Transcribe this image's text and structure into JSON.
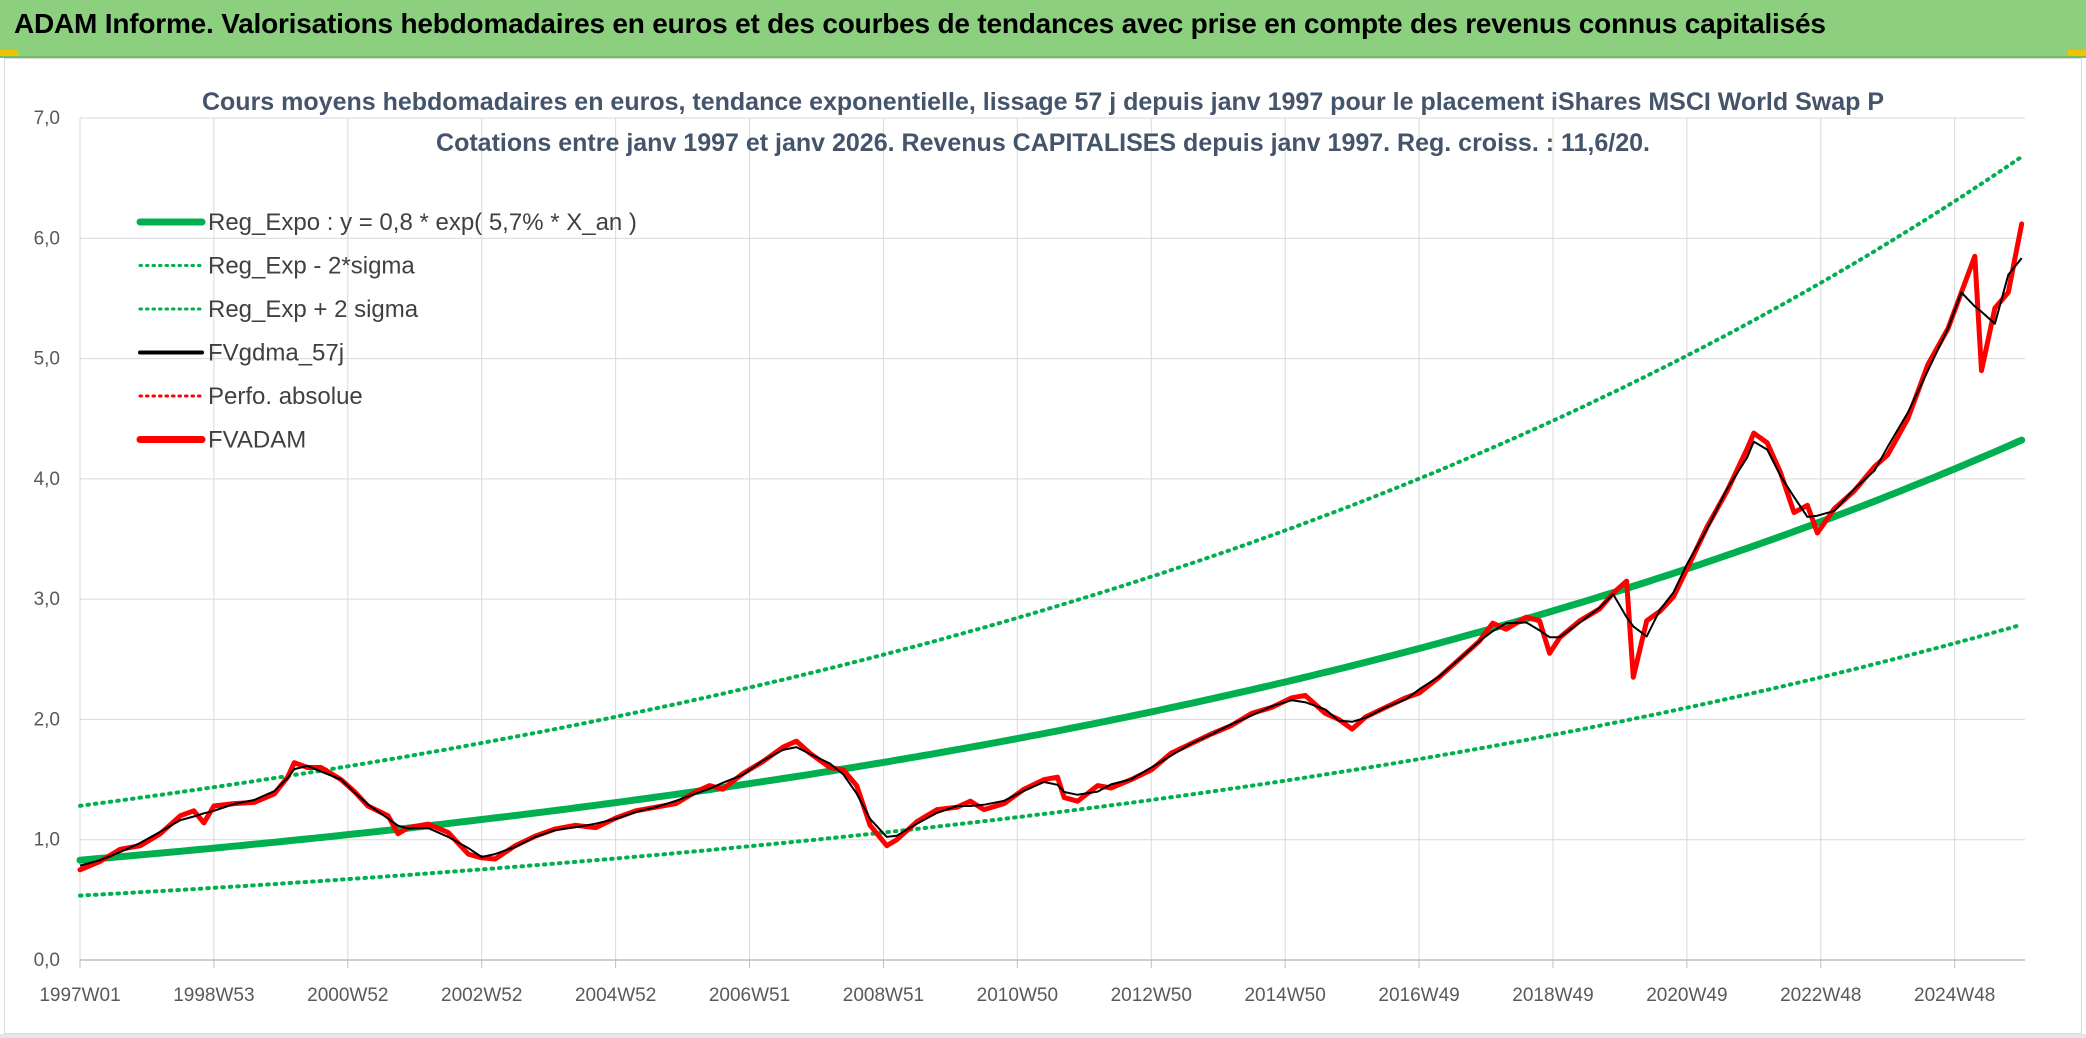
{
  "header": {
    "title": "ADAM Informe. Valorisations hebdomadaires en euros et des courbes de tendances avec prise en compte des revenus connus capitalisés"
  },
  "colors": {
    "header_bg": "#8ccf7e",
    "reg_expo": "#00b050",
    "band": "#00b050",
    "gdma": "#000000",
    "perfo": "#ff0000",
    "fvadam": "#ff0000",
    "grid": "#d9d9d9"
  },
  "chart_data": {
    "type": "line",
    "title": "Cours moyens hebdomadaires en euros, tendance exponentielle, lissage 57 j depuis janv 1997 pour le placement iShares MSCI World Swap P",
    "subtitle": "Cotations entre janv 1997 et janv 2026. Revenus CAPITALISES depuis janv 1997. Reg. croiss. : 11,6/20.",
    "ylim": [
      0,
      7
    ],
    "y_ticks": [
      "0,0",
      "1,0",
      "2,0",
      "3,0",
      "4,0",
      "5,0",
      "6,0",
      "7,0"
    ],
    "x_range": [
      1997.0,
      2026.05
    ],
    "x_ticks": [
      {
        "x": 1997.0,
        "label": "1997W01"
      },
      {
        "x": 1999.0,
        "label": "1998W53"
      },
      {
        "x": 2001.0,
        "label": "2000W52"
      },
      {
        "x": 2003.0,
        "label": "2002W52"
      },
      {
        "x": 2005.0,
        "label": "2004W52"
      },
      {
        "x": 2007.0,
        "label": "2006W51"
      },
      {
        "x": 2009.0,
        "label": "2008W51"
      },
      {
        "x": 2011.0,
        "label": "2010W50"
      },
      {
        "x": 2013.0,
        "label": "2012W50"
      },
      {
        "x": 2015.0,
        "label": "2014W50"
      },
      {
        "x": 2017.0,
        "label": "2016W49"
      },
      {
        "x": 2019.0,
        "label": "2018W49"
      },
      {
        "x": 2021.0,
        "label": "2020W49"
      },
      {
        "x": 2023.0,
        "label": "2022W48"
      },
      {
        "x": 2025.0,
        "label": "2024W48"
      }
    ],
    "legend": [
      {
        "name": "Reg_Expo : y = 0,8 * exp( 5,7% *  X_an )",
        "style": "solid-thick",
        "color": "#00b050"
      },
      {
        "name": "Reg_Exp - 2*sigma",
        "style": "dotted",
        "color": "#00b050"
      },
      {
        "name": "Reg_Exp + 2 sigma",
        "style": "dotted",
        "color": "#00b050"
      },
      {
        "name": "FVgdma_57j",
        "style": "solid",
        "color": "#000000"
      },
      {
        "name": "Perfo. absolue",
        "style": "dotted",
        "color": "#ff0000"
      },
      {
        "name": "FVADAM",
        "style": "solid-thick",
        "color": "#ff0000"
      }
    ],
    "regression": {
      "a": 0.83,
      "rate": 0.0569,
      "start": 1997.0,
      "lower_factor": 0.645,
      "upper_factor": 1.545
    },
    "fvadam_points": [
      [
        1997.0,
        0.75
      ],
      [
        1997.3,
        0.82
      ],
      [
        1997.6,
        0.92
      ],
      [
        1997.9,
        0.95
      ],
      [
        1998.2,
        1.05
      ],
      [
        1998.5,
        1.2
      ],
      [
        1998.7,
        1.24
      ],
      [
        1998.85,
        1.14
      ],
      [
        1999.0,
        1.28
      ],
      [
        1999.3,
        1.3
      ],
      [
        1999.6,
        1.31
      ],
      [
        1999.9,
        1.38
      ],
      [
        2000.1,
        1.52
      ],
      [
        2000.2,
        1.64
      ],
      [
        2000.4,
        1.6
      ],
      [
        2000.6,
        1.6
      ],
      [
        2000.9,
        1.5
      ],
      [
        2001.1,
        1.4
      ],
      [
        2001.3,
        1.28
      ],
      [
        2001.6,
        1.2
      ],
      [
        2001.75,
        1.05
      ],
      [
        2001.9,
        1.1
      ],
      [
        2002.2,
        1.13
      ],
      [
        2002.5,
        1.06
      ],
      [
        2002.8,
        0.88
      ],
      [
        2003.0,
        0.85
      ],
      [
        2003.2,
        0.84
      ],
      [
        2003.5,
        0.95
      ],
      [
        2003.8,
        1.03
      ],
      [
        2004.1,
        1.09
      ],
      [
        2004.4,
        1.12
      ],
      [
        2004.7,
        1.1
      ],
      [
        2005.0,
        1.18
      ],
      [
        2005.3,
        1.24
      ],
      [
        2005.6,
        1.27
      ],
      [
        2005.9,
        1.3
      ],
      [
        2006.2,
        1.4
      ],
      [
        2006.4,
        1.45
      ],
      [
        2006.6,
        1.42
      ],
      [
        2006.9,
        1.55
      ],
      [
        2007.2,
        1.65
      ],
      [
        2007.5,
        1.77
      ],
      [
        2007.7,
        1.82
      ],
      [
        2007.9,
        1.72
      ],
      [
        2008.2,
        1.6
      ],
      [
        2008.4,
        1.58
      ],
      [
        2008.6,
        1.45
      ],
      [
        2008.8,
        1.12
      ],
      [
        2009.05,
        0.95
      ],
      [
        2009.2,
        1.0
      ],
      [
        2009.5,
        1.15
      ],
      [
        2009.8,
        1.25
      ],
      [
        2010.1,
        1.27
      ],
      [
        2010.3,
        1.32
      ],
      [
        2010.5,
        1.25
      ],
      [
        2010.8,
        1.3
      ],
      [
        2011.1,
        1.42
      ],
      [
        2011.4,
        1.5
      ],
      [
        2011.6,
        1.52
      ],
      [
        2011.7,
        1.35
      ],
      [
        2011.9,
        1.32
      ],
      [
        2012.2,
        1.45
      ],
      [
        2012.4,
        1.43
      ],
      [
        2012.7,
        1.5
      ],
      [
        2013.0,
        1.58
      ],
      [
        2013.3,
        1.72
      ],
      [
        2013.6,
        1.8
      ],
      [
        2013.9,
        1.88
      ],
      [
        2014.2,
        1.95
      ],
      [
        2014.5,
        2.05
      ],
      [
        2014.8,
        2.1
      ],
      [
        2015.1,
        2.18
      ],
      [
        2015.3,
        2.2
      ],
      [
        2015.6,
        2.05
      ],
      [
        2015.8,
        2.0
      ],
      [
        2016.0,
        1.92
      ],
      [
        2016.2,
        2.02
      ],
      [
        2016.5,
        2.1
      ],
      [
        2016.8,
        2.18
      ],
      [
        2017.0,
        2.22
      ],
      [
        2017.3,
        2.35
      ],
      [
        2017.6,
        2.5
      ],
      [
        2017.9,
        2.65
      ],
      [
        2018.1,
        2.8
      ],
      [
        2018.3,
        2.75
      ],
      [
        2018.6,
        2.85
      ],
      [
        2018.8,
        2.82
      ],
      [
        2018.95,
        2.55
      ],
      [
        2019.1,
        2.68
      ],
      [
        2019.4,
        2.82
      ],
      [
        2019.7,
        2.92
      ],
      [
        2019.9,
        3.05
      ],
      [
        2020.1,
        3.15
      ],
      [
        2020.2,
        2.35
      ],
      [
        2020.4,
        2.82
      ],
      [
        2020.6,
        2.9
      ],
      [
        2020.8,
        3.02
      ],
      [
        2021.0,
        3.25
      ],
      [
        2021.3,
        3.6
      ],
      [
        2021.6,
        3.9
      ],
      [
        2021.9,
        4.25
      ],
      [
        2022.0,
        4.38
      ],
      [
        2022.2,
        4.3
      ],
      [
        2022.4,
        4.05
      ],
      [
        2022.6,
        3.72
      ],
      [
        2022.8,
        3.78
      ],
      [
        2022.95,
        3.55
      ],
      [
        2023.2,
        3.75
      ],
      [
        2023.5,
        3.9
      ],
      [
        2023.8,
        4.1
      ],
      [
        2024.0,
        4.2
      ],
      [
        2024.3,
        4.5
      ],
      [
        2024.6,
        4.95
      ],
      [
        2024.9,
        5.25
      ],
      [
        2025.1,
        5.55
      ],
      [
        2025.3,
        5.85
      ],
      [
        2025.4,
        4.9
      ],
      [
        2025.6,
        5.42
      ],
      [
        2025.8,
        5.55
      ],
      [
        2026.0,
        6.12
      ]
    ]
  }
}
